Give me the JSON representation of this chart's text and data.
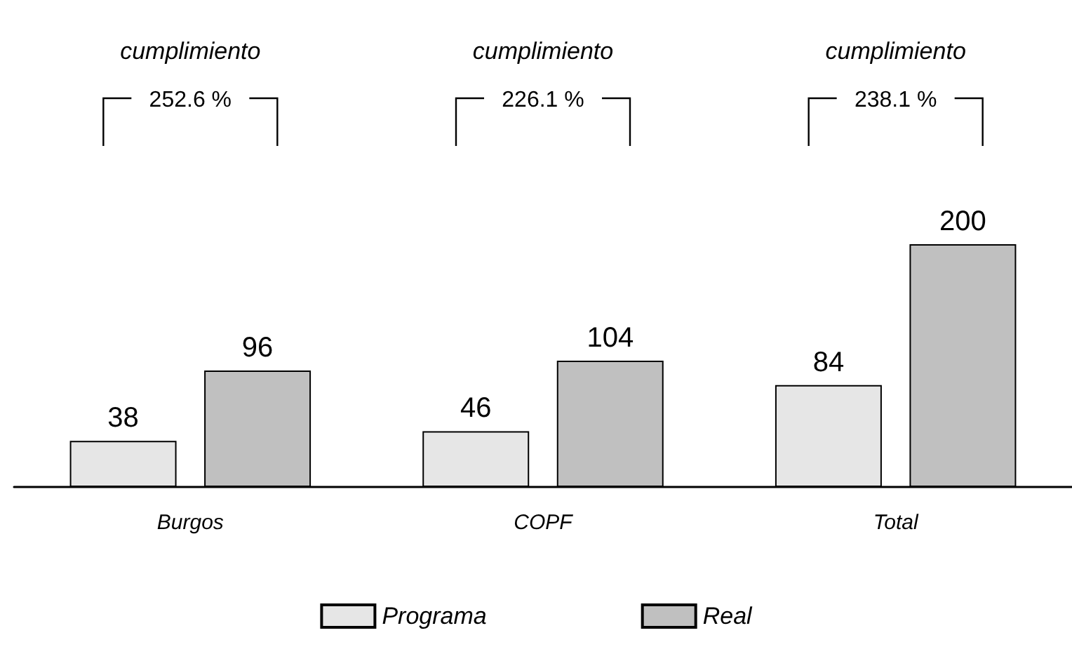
{
  "chart_data": {
    "type": "bar",
    "categories": [
      "Burgos",
      "COPF",
      "Total"
    ],
    "series": [
      {
        "name": "Programa",
        "color": "#e6e6e6",
        "values": [
          38,
          46,
          84
        ]
      },
      {
        "name": "Real",
        "color": "#c0c0c0",
        "values": [
          96,
          104,
          200
        ]
      }
    ],
    "data_labels": true,
    "legend": "bottom",
    "annotations": [
      "cumplimiento",
      "252.6 %",
      "cumplimiento",
      "226.1 %",
      "cumplimiento",
      "238.1 %"
    ]
  }
}
